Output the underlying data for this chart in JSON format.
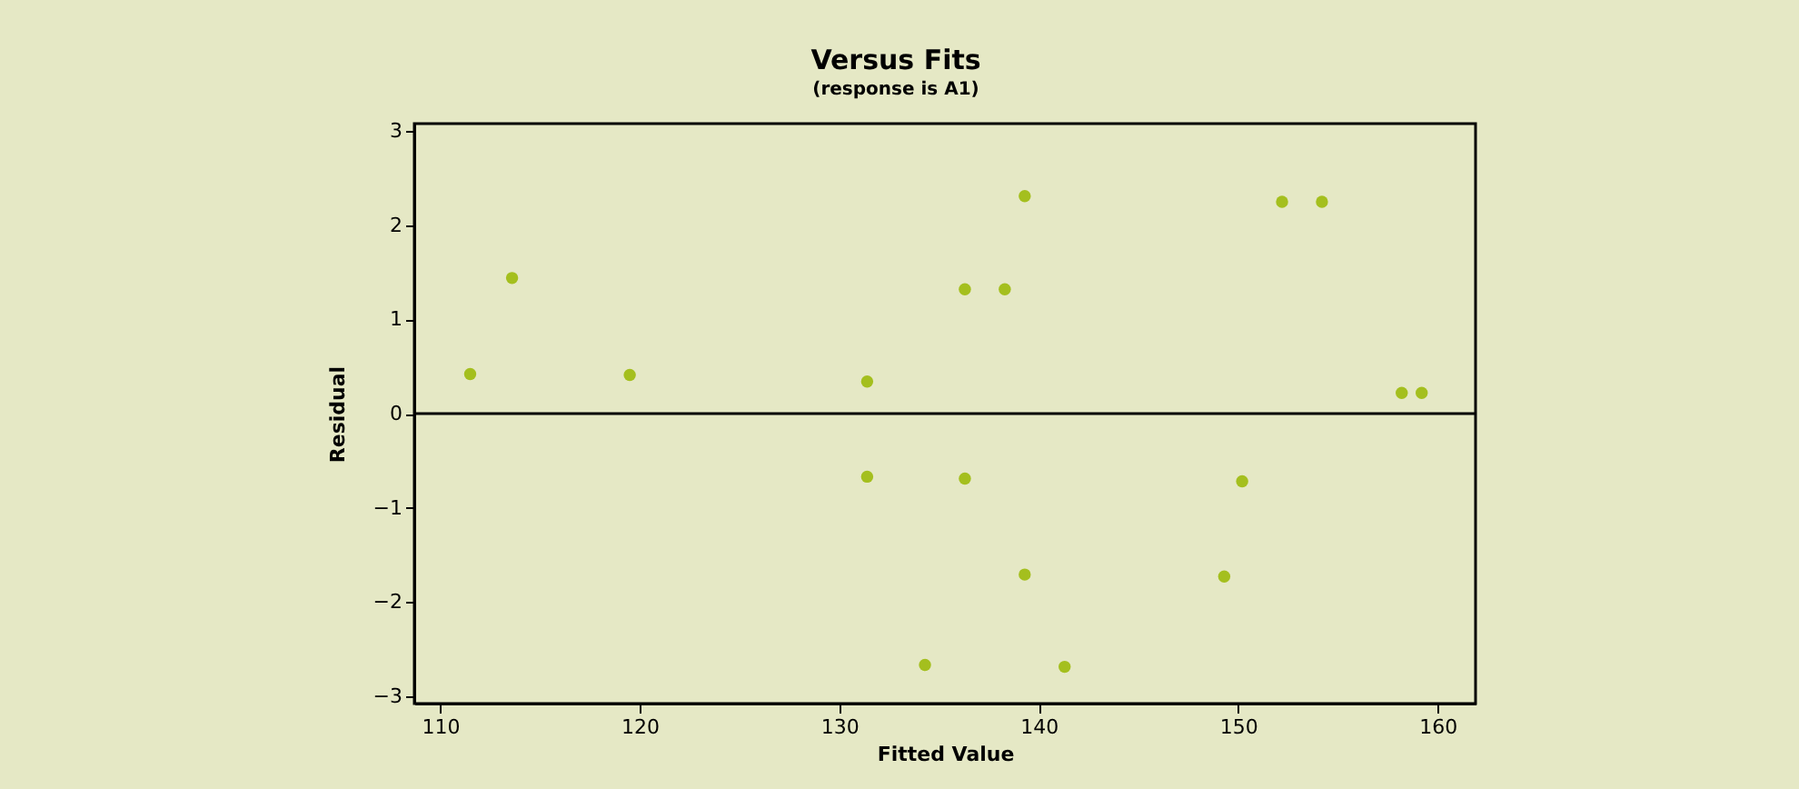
{
  "chart_data": {
    "type": "scatter",
    "title": "Versus Fits",
    "subtitle": "(response is A1)",
    "xlabel": "Fitted Value",
    "ylabel": "Residual",
    "x": [
      111.5,
      113.6,
      119.5,
      131.4,
      131.4,
      136.3,
      138.3,
      139.3,
      136.3,
      139.3,
      134.3,
      141.3,
      152.2,
      154.2,
      150.2,
      149.3,
      158.2,
      159.2
    ],
    "series": [
      {
        "color": "#a4bf1e",
        "values": [
          0.42,
          1.44,
          0.41,
          0.34,
          -0.67,
          1.32,
          1.32,
          2.31,
          -0.69,
          -1.71,
          -2.67,
          -2.69,
          2.25,
          2.25,
          -0.72,
          -1.73,
          0.22,
          0.22
        ]
      }
    ],
    "xlim": [
      108.7,
      161.9
    ],
    "xticks": [
      110,
      120,
      130,
      140,
      150,
      160
    ],
    "ylim": [
      -3.08,
      3.08
    ],
    "yticks": [
      -3,
      -2,
      -1,
      0,
      1,
      2,
      3
    ],
    "ref_lines": [
      {
        "axis": "y",
        "value": 0,
        "color": "#000000"
      }
    ],
    "grid": false,
    "marker": "circle"
  }
}
